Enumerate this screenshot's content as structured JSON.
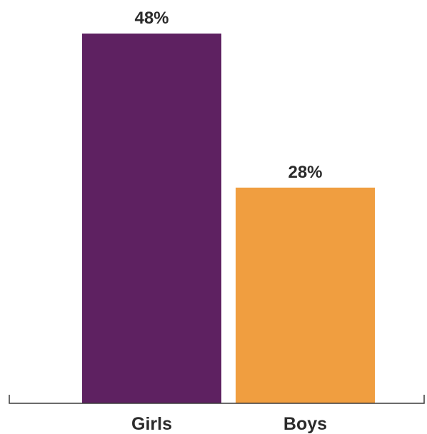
{
  "chart_data": {
    "type": "bar",
    "categories": [
      "Girls",
      "Boys"
    ],
    "values": [
      48,
      28
    ],
    "value_labels": [
      "48%",
      "28%"
    ],
    "colors": [
      "#5e2161",
      "#f09e40"
    ],
    "title": "",
    "xlabel": "",
    "ylabel": "",
    "ylim": [
      0,
      50
    ],
    "grid": false,
    "legend": "none"
  }
}
